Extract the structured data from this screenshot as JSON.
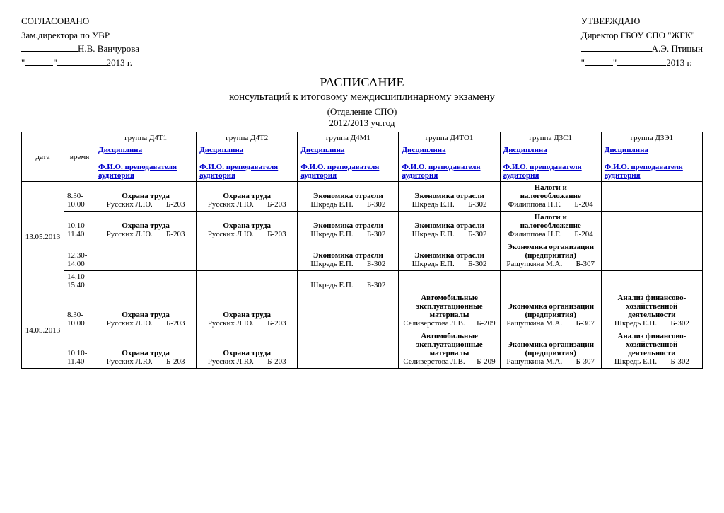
{
  "header": {
    "left": {
      "line1": "СОГЛАСОВАНО",
      "line2": "Зам.директора по УВР",
      "name": "Н.В. Ванчурова",
      "year": "2013 г."
    },
    "right": {
      "line1": "УТВЕРЖДАЮ",
      "line2": "Директор ГБОУ СПО \"ЖГК\"",
      "name": "А.Э. Птицын",
      "year": "2013 г."
    }
  },
  "title": {
    "main": "РАСПИСАНИЕ",
    "sub": "консультаций к итоговому междисциплинарному экзамену",
    "dept": "(Отделение СПО)",
    "year": "2012/2013   уч.год"
  },
  "table": {
    "col_date": "дата",
    "col_time": "время",
    "groups": [
      "группа   Д4Т1",
      "группа   Д4Т2",
      "группа   Д4М1",
      "группа  Д4ТО1",
      "группа  Д3С1",
      "группа  Д3Э1"
    ],
    "discipline_label": "Дисциплина",
    "teacher_label": "Ф.И.О. преподавателя аудитория",
    "rows": [
      {
        "date": "13.05.2013",
        "slots": [
          {
            "time": "8.30-10.00",
            "cells": [
              {
                "subj": "Охрана труда",
                "info": "Русских Л.Ю.       Б-203"
              },
              {
                "subj": "Охрана труда",
                "info": "Русских Л.Ю.       Б-203"
              },
              {
                "subj": "Экономика отрасли",
                "info": "Шкредь Е.П.       Б-302"
              },
              {
                "subj": "Экономика отрасли",
                "info": "Шкредь Е.П.       Б-302"
              },
              {
                "subj": "Налоги и налогообложение",
                "info": "Филиппова Н.Г.       Б-204"
              },
              {
                "subj": "",
                "info": ""
              }
            ]
          },
          {
            "time": "10.10-11.40",
            "cells": [
              {
                "subj": "Охрана труда",
                "info": "Русских Л.Ю.       Б-203"
              },
              {
                "subj": "Охрана труда",
                "info": "Русских Л.Ю.       Б-203"
              },
              {
                "subj": "Экономика отрасли",
                "info": "Шкредь Е.П.       Б-302"
              },
              {
                "subj": "Экономика отрасли",
                "info": "Шкредь Е.П.       Б-302"
              },
              {
                "subj": "Налоги и налогообложение",
                "info": "Филиппова Н.Г.       Б-204"
              },
              {
                "subj": "",
                "info": ""
              }
            ]
          },
          {
            "time": "12.30-14.00",
            "cells": [
              {
                "subj": "",
                "info": ""
              },
              {
                "subj": "",
                "info": ""
              },
              {
                "subj": "Экономика отрасли",
                "info": "Шкредь Е.П.       Б-302"
              },
              {
                "subj": "Экономика отрасли",
                "info": "Шкредь Е.П.       Б-302"
              },
              {
                "subj": "Экономика организации (предприятия)",
                "info": "Ращупкина М.А.       Б-307"
              },
              {
                "subj": "",
                "info": ""
              }
            ]
          },
          {
            "time": "14.10-15.40",
            "cells": [
              {
                "subj": "",
                "info": ""
              },
              {
                "subj": "",
                "info": ""
              },
              {
                "subj": "",
                "info": "Шкредь Е.П.       Б-302"
              },
              {
                "subj": "",
                "info": ""
              },
              {
                "subj": "",
                "info": ""
              },
              {
                "subj": "",
                "info": ""
              }
            ]
          }
        ]
      },
      {
        "date": "14.05.2013",
        "slots": [
          {
            "time": "8.30-10.00",
            "cells": [
              {
                "subj": "Охрана труда",
                "info": "Русских Л.Ю.       Б-203"
              },
              {
                "subj": "Охрана труда",
                "info": "Русских Л.Ю.       Б-203"
              },
              {
                "subj": "",
                "info": ""
              },
              {
                "subj": "Автомобильные эксплуатационные материалы",
                "info": "Селиверстова Л.В.      Б-209"
              },
              {
                "subj": "Экономика организации (предприятия)",
                "info": "Ращупкина М.А.       Б-307"
              },
              {
                "subj": "Анализ финансово-хозяйственной деятельности",
                "info": "Шкредь Е.П.       Б-302"
              }
            ]
          },
          {
            "time": "10.10-11.40",
            "cells": [
              {
                "subj": "Охрана труда",
                "info": "Русских Л.Ю.       Б-203"
              },
              {
                "subj": "Охрана труда",
                "info": "Русских Л.Ю.       Б-203"
              },
              {
                "subj": "",
                "info": ""
              },
              {
                "subj": "Автомобильные эксплуатационные материалы",
                "info": "Селиверстова Л.В.      Б-209"
              },
              {
                "subj": "Экономика организации (предприятия)",
                "info": "Ращупкина М.А.       Б-307"
              },
              {
                "subj": "Анализ финансово-хозяйственной деятельности",
                "info": "Шкредь Е.П.       Б-302"
              }
            ]
          }
        ]
      }
    ]
  }
}
